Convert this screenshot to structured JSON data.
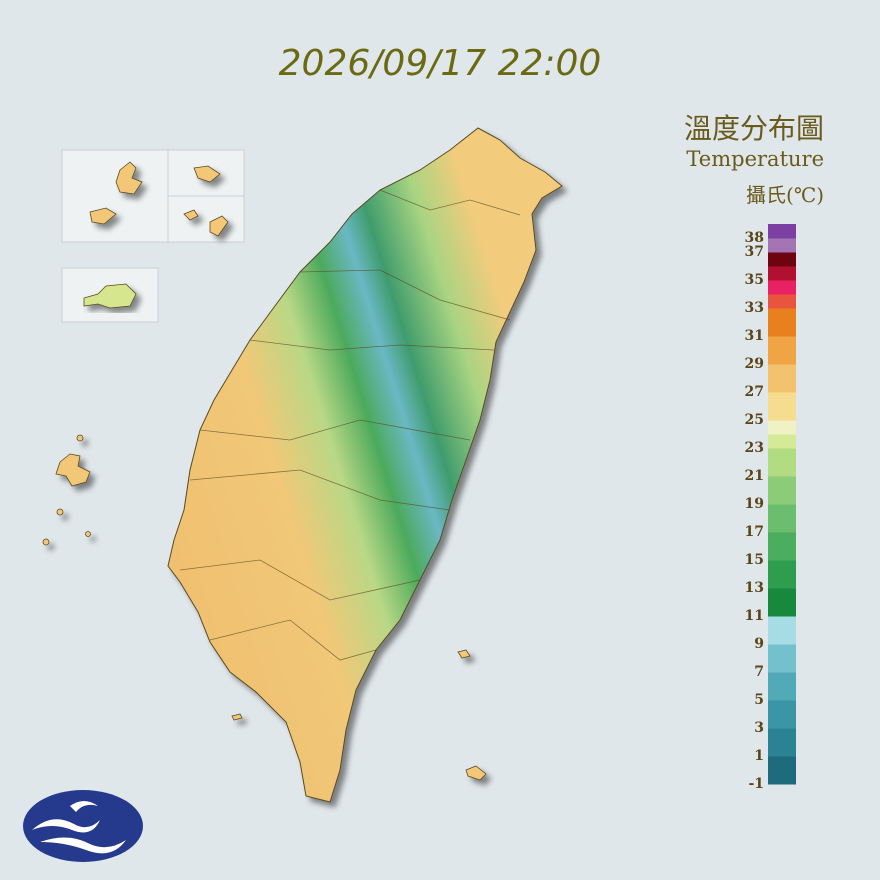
{
  "header": {
    "title": "2026/09/17 22:00"
  },
  "legend": {
    "title": "溫度分布圖",
    "subtitle": "Temperature",
    "unit": "攝氏(℃)",
    "labels": [
      38,
      37,
      35,
      33,
      31,
      29,
      27,
      25,
      23,
      21,
      19,
      17,
      15,
      13,
      11,
      9,
      7,
      5,
      3,
      1,
      -1
    ],
    "colors": [
      "#1d6b7c",
      "#1d6b7c",
      "#2a8294",
      "#2a8294",
      "#3a96a6",
      "#3a96a6",
      "#52aab8",
      "#52aab8",
      "#74c0cc",
      "#74c0cc",
      "#a6dde5",
      "#a6dde5",
      "#17883c",
      "#17883c",
      "#2e9e4e",
      "#2e9e4e",
      "#4aae5e",
      "#4aae5e",
      "#6abe6e",
      "#6abe6e",
      "#8ccc78",
      "#8ccc78",
      "#b2dc82",
      "#b2dc82",
      "#d4ea96",
      "#eef2c4",
      "#f6dc8e",
      "#f6dc8e",
      "#f2c26e",
      "#f2c26e",
      "#f0a444",
      "#f0a444",
      "#e8801e",
      "#e8801e",
      "#e8543e",
      "#e82262",
      "#b21030",
      "#6e0410",
      "#a474b4",
      "#7c40a2"
    ]
  }
}
